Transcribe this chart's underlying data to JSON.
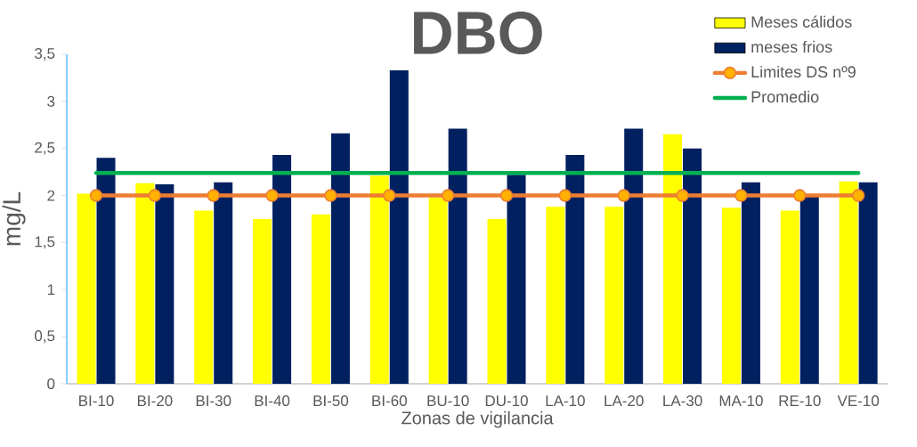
{
  "chart_data": {
    "type": "bar",
    "title": "DBO",
    "xlabel": "Zonas de vigilancia",
    "ylabel": "mg/L",
    "categories": [
      "BI-10",
      "BI-20",
      "BI-30",
      "BI-40",
      "BI-50",
      "BI-60",
      "BU-10",
      "DU-10",
      "LA-10",
      "LA-20",
      "LA-30",
      "MA-10",
      "RE-10",
      "VE-10"
    ],
    "series": [
      {
        "name": "Meses cálidos",
        "color": "#ffff00",
        "values": [
          2.02,
          2.13,
          1.84,
          1.75,
          1.8,
          2.21,
          1.98,
          1.75,
          1.88,
          1.88,
          2.65,
          1.87,
          1.84,
          2.15
        ]
      },
      {
        "name": "meses frios",
        "color": "#002060",
        "values": [
          2.4,
          2.12,
          2.14,
          2.43,
          2.66,
          3.33,
          2.71,
          2.22,
          2.43,
          2.71,
          2.5,
          2.14,
          2.0,
          2.14
        ]
      },
      {
        "name": "Limites DS nº9",
        "type": "line",
        "color": "#ed7d31",
        "marker": "circle",
        "values": [
          2,
          2,
          2,
          2,
          2,
          2,
          2,
          2,
          2,
          2,
          2,
          2,
          2,
          2
        ]
      },
      {
        "name": "Promedio",
        "type": "line",
        "color": "#00b050",
        "marker": "none",
        "values": [
          2.24,
          2.24,
          2.24,
          2.24,
          2.24,
          2.24,
          2.24,
          2.24,
          2.24,
          2.24,
          2.24,
          2.24,
          2.24,
          2.24
        ]
      }
    ],
    "ylim": [
      0,
      3.5
    ],
    "yticks": [
      0,
      {
        "value": 0.5,
        "label": "0,5"
      },
      1,
      {
        "value": 1.5,
        "label": "1,5"
      },
      2,
      {
        "value": 2.5,
        "label": "2,5"
      },
      3,
      {
        "value": 3.5,
        "label": "3,5"
      }
    ],
    "legend": "top right"
  }
}
